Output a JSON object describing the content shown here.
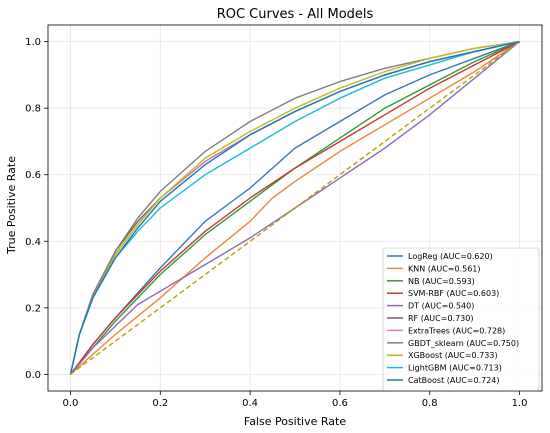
{
  "chart_data": {
    "type": "line",
    "title": "ROC Curves - All Models",
    "xlabel": "False Positive Rate",
    "ylabel": "True Positive Rate",
    "xlim": [
      -0.05,
      1.05
    ],
    "ylim": [
      -0.05,
      1.05
    ],
    "xticks": [
      "0.0",
      "0.2",
      "0.4",
      "0.6",
      "0.8",
      "1.0"
    ],
    "yticks": [
      "0.0",
      "0.2",
      "0.4",
      "0.6",
      "0.8",
      "1.0"
    ],
    "grid": true,
    "legend_position": "lower-right",
    "diagonal": {
      "x": [
        0,
        1
      ],
      "y": [
        0,
        1
      ],
      "color": "#b8a000",
      "style": "dashed"
    },
    "series": [
      {
        "name": "LogReg (AUC=0.620)",
        "color": "#3b75af",
        "x": [
          0,
          0.05,
          0.1,
          0.2,
          0.3,
          0.4,
          0.5,
          0.6,
          0.7,
          0.8,
          0.9,
          1.0
        ],
        "y": [
          0,
          0.09,
          0.17,
          0.32,
          0.46,
          0.56,
          0.68,
          0.76,
          0.84,
          0.9,
          0.95,
          1.0
        ]
      },
      {
        "name": "KNN (AUC=0.561)",
        "color": "#ef8636",
        "x": [
          0,
          0.05,
          0.1,
          0.2,
          0.3,
          0.4,
          0.45,
          0.5,
          0.6,
          0.7,
          0.8,
          0.9,
          1.0
        ],
        "y": [
          0,
          0.06,
          0.12,
          0.23,
          0.35,
          0.46,
          0.53,
          0.58,
          0.67,
          0.75,
          0.83,
          0.91,
          1.0
        ]
      },
      {
        "name": "NB (AUC=0.593)",
        "color": "#2f9a3e",
        "x": [
          0,
          0.05,
          0.1,
          0.2,
          0.3,
          0.4,
          0.5,
          0.6,
          0.7,
          0.8,
          0.9,
          1.0
        ],
        "y": [
          0,
          0.08,
          0.16,
          0.3,
          0.42,
          0.52,
          0.62,
          0.71,
          0.8,
          0.87,
          0.94,
          1.0
        ]
      },
      {
        "name": "SVM-RBF (AUC=0.603)",
        "color": "#c13a32",
        "x": [
          0,
          0.05,
          0.1,
          0.2,
          0.3,
          0.4,
          0.5,
          0.6,
          0.7,
          0.8,
          0.9,
          1.0
        ],
        "y": [
          0,
          0.09,
          0.17,
          0.31,
          0.43,
          0.53,
          0.62,
          0.7,
          0.78,
          0.86,
          0.93,
          1.0
        ]
      },
      {
        "name": "DT (AUC=0.540)",
        "color": "#8d69b8",
        "x": [
          0,
          0.05,
          0.15,
          0.2,
          0.3,
          0.4,
          0.5,
          0.6,
          0.7,
          0.8,
          0.9,
          1.0
        ],
        "y": [
          0,
          0.08,
          0.21,
          0.25,
          0.33,
          0.41,
          0.5,
          0.59,
          0.68,
          0.78,
          0.89,
          1.0
        ]
      },
      {
        "name": "RF (AUC=0.730)",
        "color": "#84584e",
        "x": [
          0,
          0.02,
          0.05,
          0.1,
          0.15,
          0.2,
          0.3,
          0.4,
          0.5,
          0.6,
          0.7,
          0.8,
          0.9,
          1.0
        ],
        "y": [
          0,
          0.12,
          0.24,
          0.37,
          0.46,
          0.53,
          0.64,
          0.72,
          0.79,
          0.85,
          0.9,
          0.94,
          0.97,
          1.0
        ]
      },
      {
        "name": "ExtraTrees (AUC=0.728)",
        "color": "#d57dbe",
        "x": [
          0,
          0.02,
          0.05,
          0.1,
          0.15,
          0.2,
          0.3,
          0.4,
          0.5,
          0.6,
          0.7,
          0.8,
          0.9,
          1.0
        ],
        "y": [
          0,
          0.12,
          0.24,
          0.36,
          0.45,
          0.53,
          0.64,
          0.72,
          0.79,
          0.85,
          0.9,
          0.94,
          0.97,
          1.0
        ]
      },
      {
        "name": "GBDT_sklearn (AUC=0.750)",
        "color": "#7f7f7f",
        "x": [
          0,
          0.02,
          0.05,
          0.1,
          0.15,
          0.2,
          0.3,
          0.4,
          0.5,
          0.6,
          0.7,
          0.8,
          0.9,
          1.0
        ],
        "y": [
          0,
          0.12,
          0.24,
          0.37,
          0.47,
          0.55,
          0.67,
          0.76,
          0.83,
          0.88,
          0.92,
          0.95,
          0.98,
          1.0
        ]
      },
      {
        "name": "XGBoost (AUC=0.733)",
        "color": "#bcbd22",
        "x": [
          0,
          0.02,
          0.05,
          0.1,
          0.15,
          0.2,
          0.3,
          0.4,
          0.5,
          0.6,
          0.7,
          0.8,
          0.9,
          1.0
        ],
        "y": [
          0,
          0.12,
          0.23,
          0.36,
          0.45,
          0.53,
          0.65,
          0.73,
          0.8,
          0.86,
          0.91,
          0.95,
          0.98,
          1.0
        ]
      },
      {
        "name": "LightGBM (AUC=0.713)",
        "color": "#17becf",
        "x": [
          0,
          0.02,
          0.05,
          0.1,
          0.15,
          0.2,
          0.3,
          0.4,
          0.5,
          0.6,
          0.7,
          0.8,
          0.9,
          1.0
        ],
        "y": [
          0,
          0.12,
          0.23,
          0.35,
          0.43,
          0.5,
          0.6,
          0.68,
          0.76,
          0.83,
          0.89,
          0.93,
          0.97,
          1.0
        ]
      },
      {
        "name": "CatBoost (AUC=0.724)",
        "color": "#1f77b4",
        "x": [
          0,
          0.02,
          0.05,
          0.1,
          0.15,
          0.2,
          0.3,
          0.4,
          0.5,
          0.6,
          0.7,
          0.8,
          0.9,
          1.0
        ],
        "y": [
          0,
          0.12,
          0.23,
          0.35,
          0.44,
          0.52,
          0.63,
          0.72,
          0.79,
          0.85,
          0.9,
          0.94,
          0.97,
          1.0
        ]
      }
    ]
  }
}
